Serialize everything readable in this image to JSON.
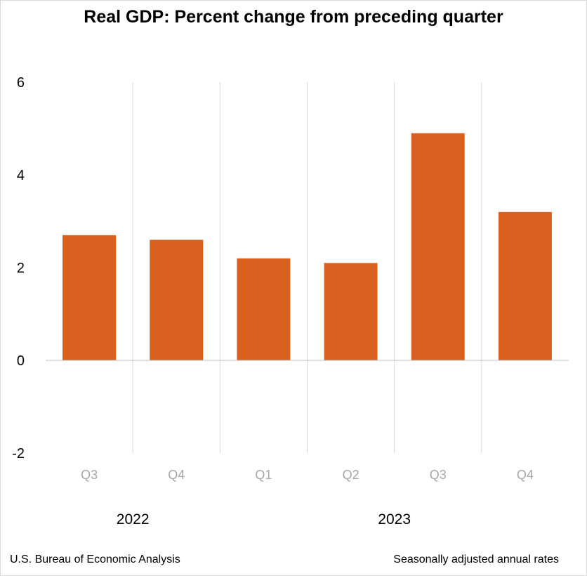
{
  "header": {
    "title": "Real GDP:  Percent change from preceding quarter"
  },
  "footer": {
    "source": "U.S. Bureau of Economic Analysis",
    "note": "Seasonally adjusted annual rates"
  },
  "colors": {
    "bar": "#d9601f",
    "grid": "#d9d9d9",
    "zero_line": "#bfbfbf",
    "tick_text": "#000000",
    "category_text": "#a6a6a6"
  },
  "chart_data": {
    "type": "bar",
    "title": "Real GDP:  Percent change from preceding quarter",
    "categories": [
      "Q3",
      "Q4",
      "Q1",
      "Q2",
      "Q3",
      "Q4"
    ],
    "groups": [
      {
        "label": "2022",
        "start": 0,
        "end": 2
      },
      {
        "label": "2023",
        "start": 2,
        "end": 6
      }
    ],
    "values": [
      2.7,
      2.6,
      2.2,
      2.1,
      4.9,
      3.2
    ],
    "ylim": [
      -2,
      6
    ],
    "yticks": [
      -2,
      0,
      2,
      4,
      6
    ],
    "xlabel": "",
    "ylabel": "",
    "grid": "vertical"
  }
}
